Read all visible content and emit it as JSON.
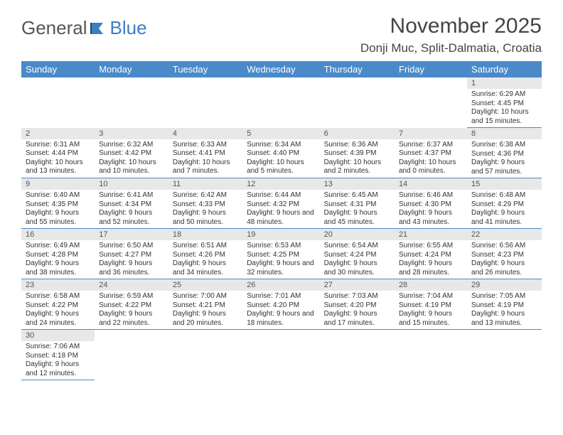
{
  "logo": {
    "text1": "General",
    "text2": "Blue"
  },
  "title": "November 2025",
  "location": "Donji Muc, Split-Dalmatia, Croatia",
  "colors": {
    "header_bg": "#4a8ac9",
    "header_text": "#ffffff",
    "day_bg": "#e8e8e8",
    "border": "#4a8ac9"
  },
  "dayNames": [
    "Sunday",
    "Monday",
    "Tuesday",
    "Wednesday",
    "Thursday",
    "Friday",
    "Saturday"
  ],
  "weeks": [
    [
      null,
      null,
      null,
      null,
      null,
      null,
      {
        "n": "1",
        "r": "6:29 AM",
        "s": "4:45 PM",
        "d": "10 hours and 15 minutes."
      }
    ],
    [
      {
        "n": "2",
        "r": "6:31 AM",
        "s": "4:44 PM",
        "d": "10 hours and 13 minutes."
      },
      {
        "n": "3",
        "r": "6:32 AM",
        "s": "4:42 PM",
        "d": "10 hours and 10 minutes."
      },
      {
        "n": "4",
        "r": "6:33 AM",
        "s": "4:41 PM",
        "d": "10 hours and 7 minutes."
      },
      {
        "n": "5",
        "r": "6:34 AM",
        "s": "4:40 PM",
        "d": "10 hours and 5 minutes."
      },
      {
        "n": "6",
        "r": "6:36 AM",
        "s": "4:39 PM",
        "d": "10 hours and 2 minutes."
      },
      {
        "n": "7",
        "r": "6:37 AM",
        "s": "4:37 PM",
        "d": "10 hours and 0 minutes."
      },
      {
        "n": "8",
        "r": "6:38 AM",
        "s": "4:36 PM",
        "d": "9 hours and 57 minutes."
      }
    ],
    [
      {
        "n": "9",
        "r": "6:40 AM",
        "s": "4:35 PM",
        "d": "9 hours and 55 minutes."
      },
      {
        "n": "10",
        "r": "6:41 AM",
        "s": "4:34 PM",
        "d": "9 hours and 52 minutes."
      },
      {
        "n": "11",
        "r": "6:42 AM",
        "s": "4:33 PM",
        "d": "9 hours and 50 minutes."
      },
      {
        "n": "12",
        "r": "6:44 AM",
        "s": "4:32 PM",
        "d": "9 hours and 48 minutes."
      },
      {
        "n": "13",
        "r": "6:45 AM",
        "s": "4:31 PM",
        "d": "9 hours and 45 minutes."
      },
      {
        "n": "14",
        "r": "6:46 AM",
        "s": "4:30 PM",
        "d": "9 hours and 43 minutes."
      },
      {
        "n": "15",
        "r": "6:48 AM",
        "s": "4:29 PM",
        "d": "9 hours and 41 minutes."
      }
    ],
    [
      {
        "n": "16",
        "r": "6:49 AM",
        "s": "4:28 PM",
        "d": "9 hours and 38 minutes."
      },
      {
        "n": "17",
        "r": "6:50 AM",
        "s": "4:27 PM",
        "d": "9 hours and 36 minutes."
      },
      {
        "n": "18",
        "r": "6:51 AM",
        "s": "4:26 PM",
        "d": "9 hours and 34 minutes."
      },
      {
        "n": "19",
        "r": "6:53 AM",
        "s": "4:25 PM",
        "d": "9 hours and 32 minutes."
      },
      {
        "n": "20",
        "r": "6:54 AM",
        "s": "4:24 PM",
        "d": "9 hours and 30 minutes."
      },
      {
        "n": "21",
        "r": "6:55 AM",
        "s": "4:24 PM",
        "d": "9 hours and 28 minutes."
      },
      {
        "n": "22",
        "r": "6:56 AM",
        "s": "4:23 PM",
        "d": "9 hours and 26 minutes."
      }
    ],
    [
      {
        "n": "23",
        "r": "6:58 AM",
        "s": "4:22 PM",
        "d": "9 hours and 24 minutes."
      },
      {
        "n": "24",
        "r": "6:59 AM",
        "s": "4:22 PM",
        "d": "9 hours and 22 minutes."
      },
      {
        "n": "25",
        "r": "7:00 AM",
        "s": "4:21 PM",
        "d": "9 hours and 20 minutes."
      },
      {
        "n": "26",
        "r": "7:01 AM",
        "s": "4:20 PM",
        "d": "9 hours and 18 minutes."
      },
      {
        "n": "27",
        "r": "7:03 AM",
        "s": "4:20 PM",
        "d": "9 hours and 17 minutes."
      },
      {
        "n": "28",
        "r": "7:04 AM",
        "s": "4:19 PM",
        "d": "9 hours and 15 minutes."
      },
      {
        "n": "29",
        "r": "7:05 AM",
        "s": "4:19 PM",
        "d": "9 hours and 13 minutes."
      }
    ],
    [
      {
        "n": "30",
        "r": "7:06 AM",
        "s": "4:18 PM",
        "d": "9 hours and 12 minutes."
      },
      null,
      null,
      null,
      null,
      null,
      null
    ]
  ]
}
